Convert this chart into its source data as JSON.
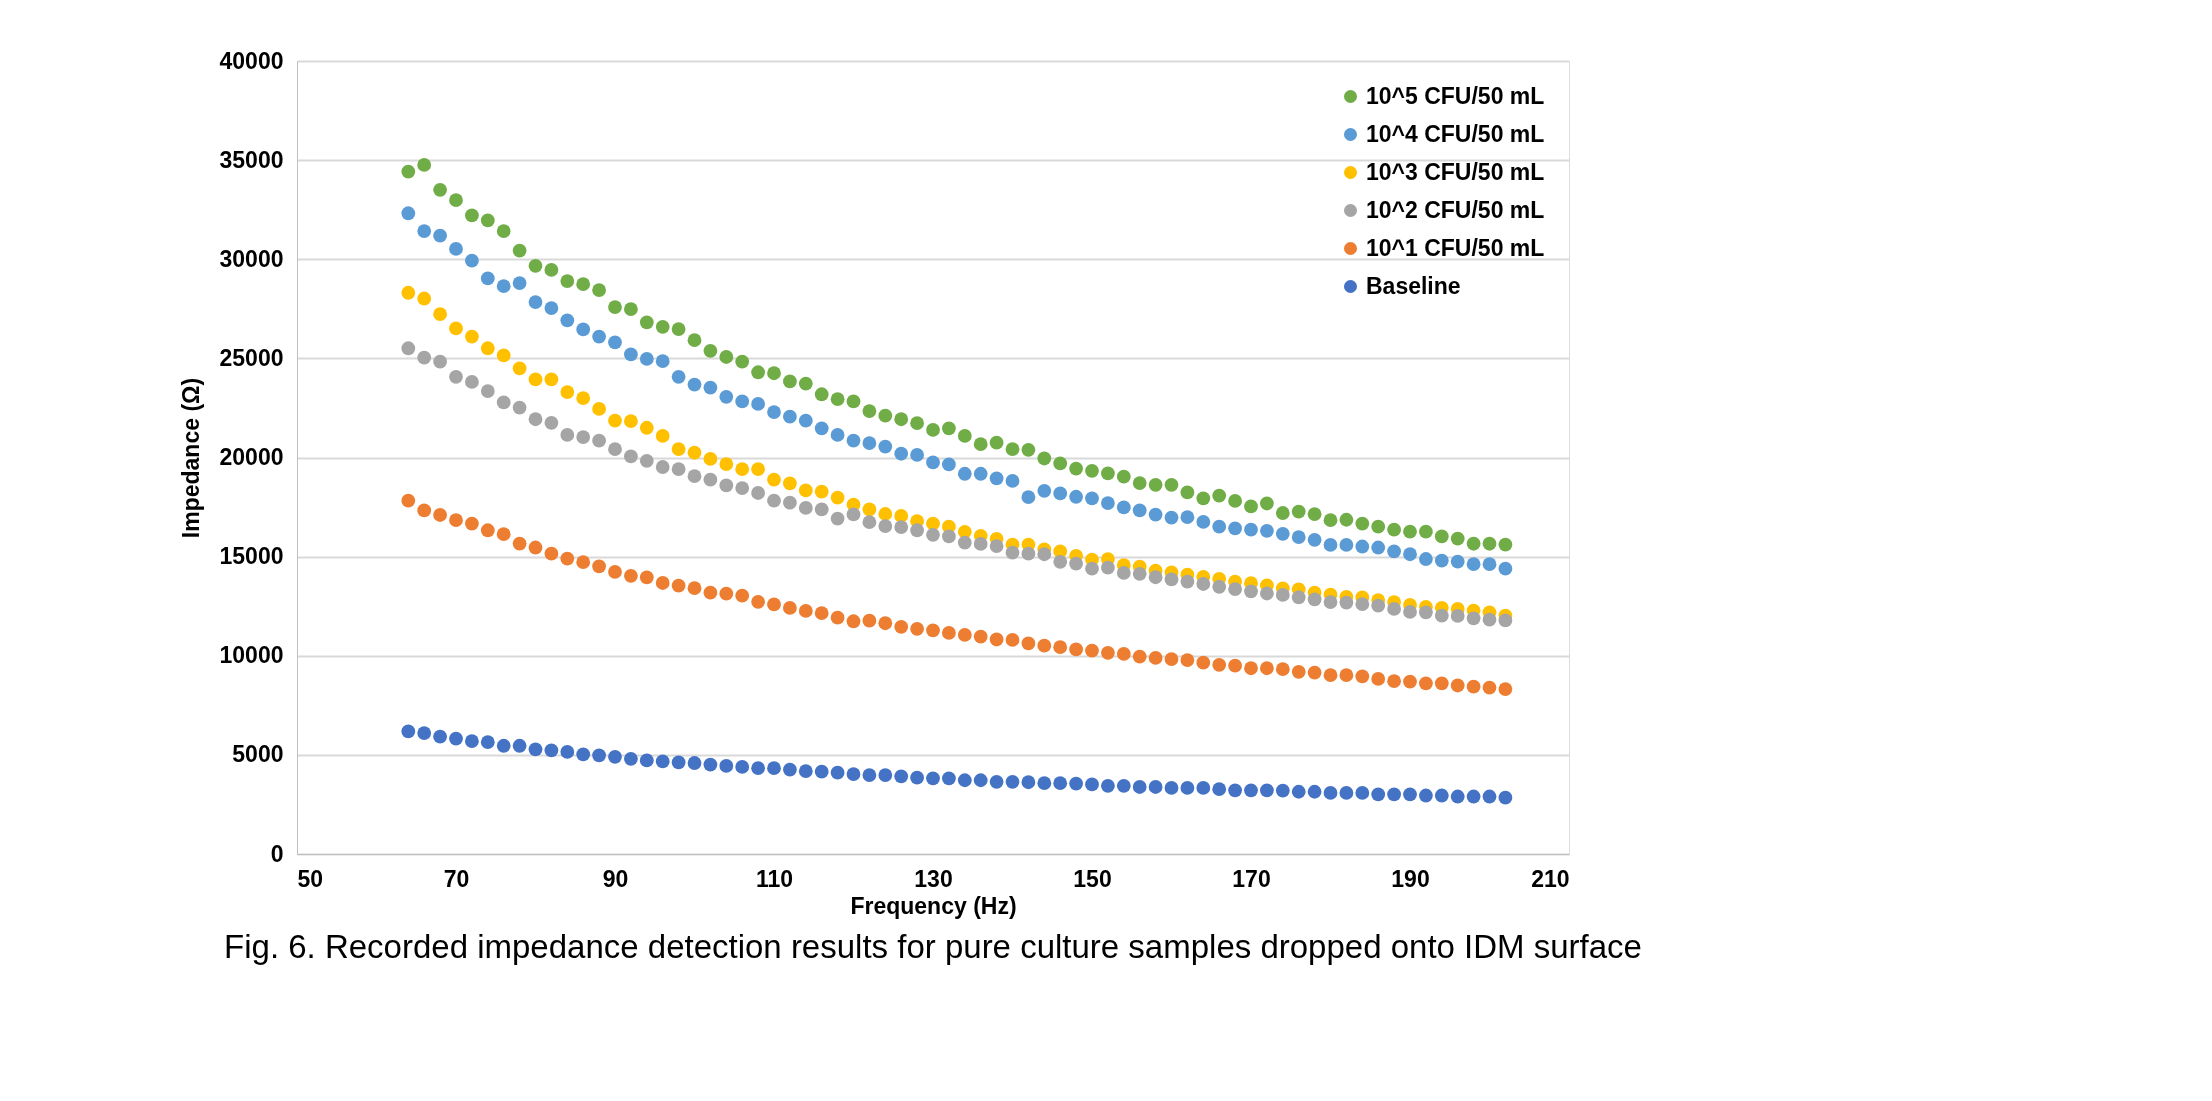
{
  "chart_data": {
    "type": "scatter",
    "xlabel": "Frequency (Hz)",
    "ylabel": "Impedance (Ω)",
    "annotations": [
      "Fig. 6. Recorded impedance detection results for pure culture samples dropped onto IDM surface"
    ],
    "x": [
      64,
      66,
      68,
      70,
      72,
      74,
      76,
      78,
      80,
      82,
      84,
      86,
      88,
      90,
      92,
      94,
      96,
      98,
      100,
      102,
      104,
      106,
      108,
      110,
      112,
      114,
      116,
      118,
      120,
      122,
      124,
      126,
      128,
      130,
      132,
      134,
      136,
      138,
      140,
      142,
      144,
      146,
      148,
      150,
      152,
      154,
      156,
      158,
      160,
      162,
      164,
      166,
      168,
      170,
      172,
      174,
      176,
      178,
      180,
      182,
      184,
      186,
      188,
      190,
      192,
      194,
      196,
      198,
      200,
      202
    ],
    "xlim": [
      50,
      210
    ],
    "xticks": [
      50,
      70,
      90,
      110,
      130,
      150,
      170,
      190,
      210
    ],
    "ylim": [
      0,
      40000
    ],
    "yticks": [
      0,
      5000,
      10000,
      15000,
      20000,
      25000,
      30000,
      35000,
      40000
    ],
    "grid": "y",
    "legend": "top right",
    "marker": "circle",
    "series": [
      {
        "name": "10^5 CFU/50 mL",
        "color": "#70ad47",
        "values": [
          34420,
          34760,
          33500,
          32980,
          32210,
          31960,
          31420,
          30440,
          29670,
          29460,
          28900,
          28740,
          28440,
          27590,
          27480,
          26820,
          26590,
          26480,
          25920,
          25380,
          25070,
          24840,
          24300,
          24250,
          23840,
          23730,
          23190,
          22940,
          22830,
          22340,
          22110,
          21930,
          21730,
          21390,
          21470,
          21090,
          20670,
          20750,
          20420,
          20390,
          19950,
          19700,
          19440,
          19330,
          19200,
          19030,
          18710,
          18620,
          18620,
          18240,
          17940,
          18080,
          17810,
          17530,
          17680,
          17200,
          17270,
          17140,
          16840,
          16860,
          16670,
          16510,
          16360,
          16260,
          16260,
          16020,
          15910,
          15650,
          15650,
          15610
        ]
      },
      {
        "name": "10^4 CFU/50 mL",
        "color": "#5b9bd5",
        "values": [
          32320,
          31420,
          31190,
          30520,
          29930,
          29030,
          28640,
          28800,
          27840,
          27540,
          26920,
          26460,
          26100,
          25810,
          25200,
          24970,
          24860,
          24070,
          23680,
          23530,
          23060,
          22830,
          22700,
          22290,
          22060,
          21860,
          21470,
          21140,
          20850,
          20730,
          20550,
          20190,
          20130,
          19750,
          19650,
          19180,
          19180,
          18950,
          18820,
          18000,
          18320,
          18190,
          18020,
          17940,
          17700,
          17480,
          17330,
          17120,
          16970,
          16990,
          16750,
          16510,
          16430,
          16360,
          16300,
          16150,
          15980,
          15850,
          15590,
          15590,
          15510,
          15460,
          15270,
          15120,
          14880,
          14800,
          14750,
          14620,
          14620,
          14390
        ]
      },
      {
        "name": "10^3 CFU/50 mL",
        "color": "#ffc000",
        "values": [
          28310,
          28020,
          27230,
          26510,
          26100,
          25510,
          25150,
          24500,
          23940,
          23940,
          23300,
          22990,
          22450,
          21860,
          21830,
          21500,
          21090,
          20420,
          20240,
          19930,
          19670,
          19410,
          19410,
          18880,
          18700,
          18340,
          18280,
          17980,
          17620,
          17380,
          17150,
          17050,
          16790,
          16670,
          16510,
          16250,
          16050,
          15900,
          15610,
          15610,
          15360,
          15260,
          15040,
          14850,
          14870,
          14570,
          14500,
          14290,
          14200,
          14090,
          13980,
          13880,
          13740,
          13660,
          13550,
          13400,
          13350,
          13180,
          13080,
          12970,
          12940,
          12810,
          12710,
          12560,
          12470,
          12420,
          12360,
          12280,
          12190,
          12020
        ]
      },
      {
        "name": "10^2 CFU/50 mL",
        "color": "#a5a5a5",
        "values": [
          25510,
          25040,
          24840,
          24070,
          23810,
          23350,
          22780,
          22520,
          21930,
          21750,
          21140,
          21030,
          20850,
          20420,
          20060,
          19830,
          19520,
          19410,
          19060,
          18880,
          18590,
          18460,
          18210,
          17820,
          17720,
          17460,
          17380,
          16920,
          17130,
          16740,
          16540,
          16490,
          16330,
          16100,
          16020,
          15710,
          15640,
          15530,
          15200,
          15150,
          15120,
          14740,
          14650,
          14390,
          14440,
          14180,
          14130,
          13960,
          13850,
          13740,
          13620,
          13480,
          13360,
          13250,
          13140,
          13070,
          12950,
          12840,
          12710,
          12680,
          12600,
          12530,
          12360,
          12210,
          12190,
          12020,
          12010,
          11890,
          11820,
          11780
        ]
      },
      {
        "name": "10^1 CFU/50 mL",
        "color": "#ed7d31",
        "values": [
          17820,
          17330,
          17100,
          16840,
          16670,
          16330,
          16130,
          15660,
          15460,
          15150,
          14900,
          14720,
          14510,
          14230,
          14030,
          13950,
          13670,
          13540,
          13410,
          13180,
          13130,
          13030,
          12720,
          12590,
          12410,
          12260,
          12150,
          11920,
          11740,
          11770,
          11640,
          11460,
          11360,
          11280,
          11150,
          11050,
          10970,
          10820,
          10800,
          10620,
          10510,
          10430,
          10320,
          10260,
          10150,
          10090,
          9960,
          9890,
          9830,
          9780,
          9650,
          9540,
          9500,
          9370,
          9370,
          9320,
          9190,
          9150,
          9020,
          9020,
          8960,
          8830,
          8720,
          8700,
          8610,
          8610,
          8500,
          8440,
          8390,
          8320
        ]
      },
      {
        "name": "Baseline",
        "color": "#4472c4",
        "values": [
          6180,
          6100,
          5920,
          5820,
          5690,
          5640,
          5460,
          5460,
          5280,
          5230,
          5150,
          5030,
          4980,
          4900,
          4800,
          4720,
          4670,
          4620,
          4590,
          4510,
          4440,
          4390,
          4330,
          4330,
          4260,
          4180,
          4150,
          4100,
          4030,
          3980,
          3980,
          3920,
          3850,
          3820,
          3820,
          3720,
          3720,
          3640,
          3640,
          3620,
          3570,
          3570,
          3550,
          3510,
          3440,
          3440,
          3380,
          3380,
          3330,
          3330,
          3330,
          3270,
          3210,
          3210,
          3210,
          3200,
          3140,
          3140,
          3080,
          3080,
          3080,
          3010,
          3010,
          3010,
          2950,
          2950,
          2900,
          2900,
          2900,
          2840
        ]
      }
    ]
  }
}
